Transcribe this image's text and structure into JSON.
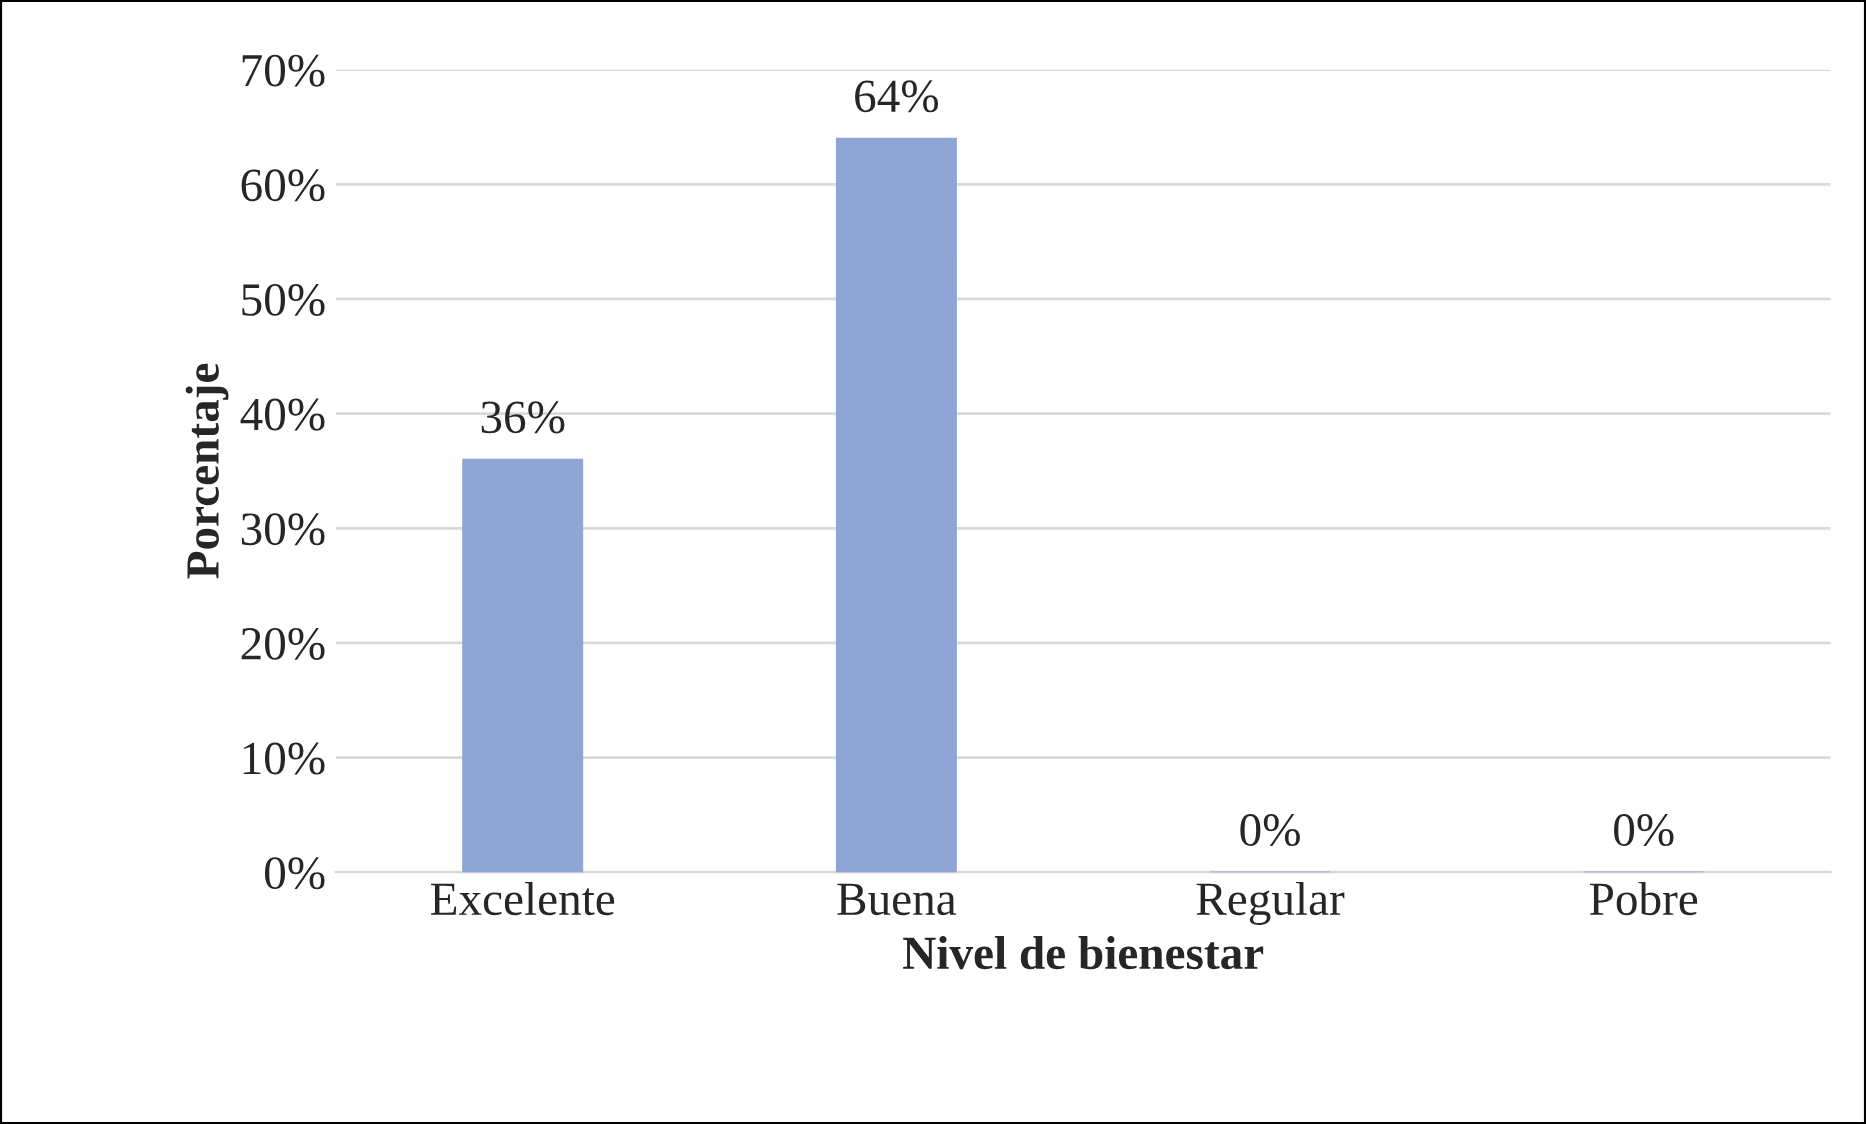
{
  "chart_data": {
    "type": "bar",
    "xlabel": "Nivel de bienestar",
    "ylabel": "Porcentaje",
    "categories": [
      "Excelente",
      "Buena",
      "Regular",
      "Pobre"
    ],
    "values": [
      36,
      64,
      0,
      0
    ],
    "value_labels": [
      "36%",
      "64%",
      "0%",
      "0%"
    ],
    "color": "#8fa5d5",
    "ylim": [
      0,
      70
    ],
    "yticks": [
      {
        "value": 0,
        "label": "0%"
      },
      {
        "value": 10,
        "label": "10%"
      },
      {
        "value": 20,
        "label": "20%"
      },
      {
        "value": 30,
        "label": "30%"
      },
      {
        "value": 40,
        "label": "40%"
      },
      {
        "value": 50,
        "label": "50%"
      },
      {
        "value": 60,
        "label": "60%"
      },
      {
        "value": 70,
        "label": "70%"
      }
    ],
    "grid": "y",
    "legend": false
  }
}
